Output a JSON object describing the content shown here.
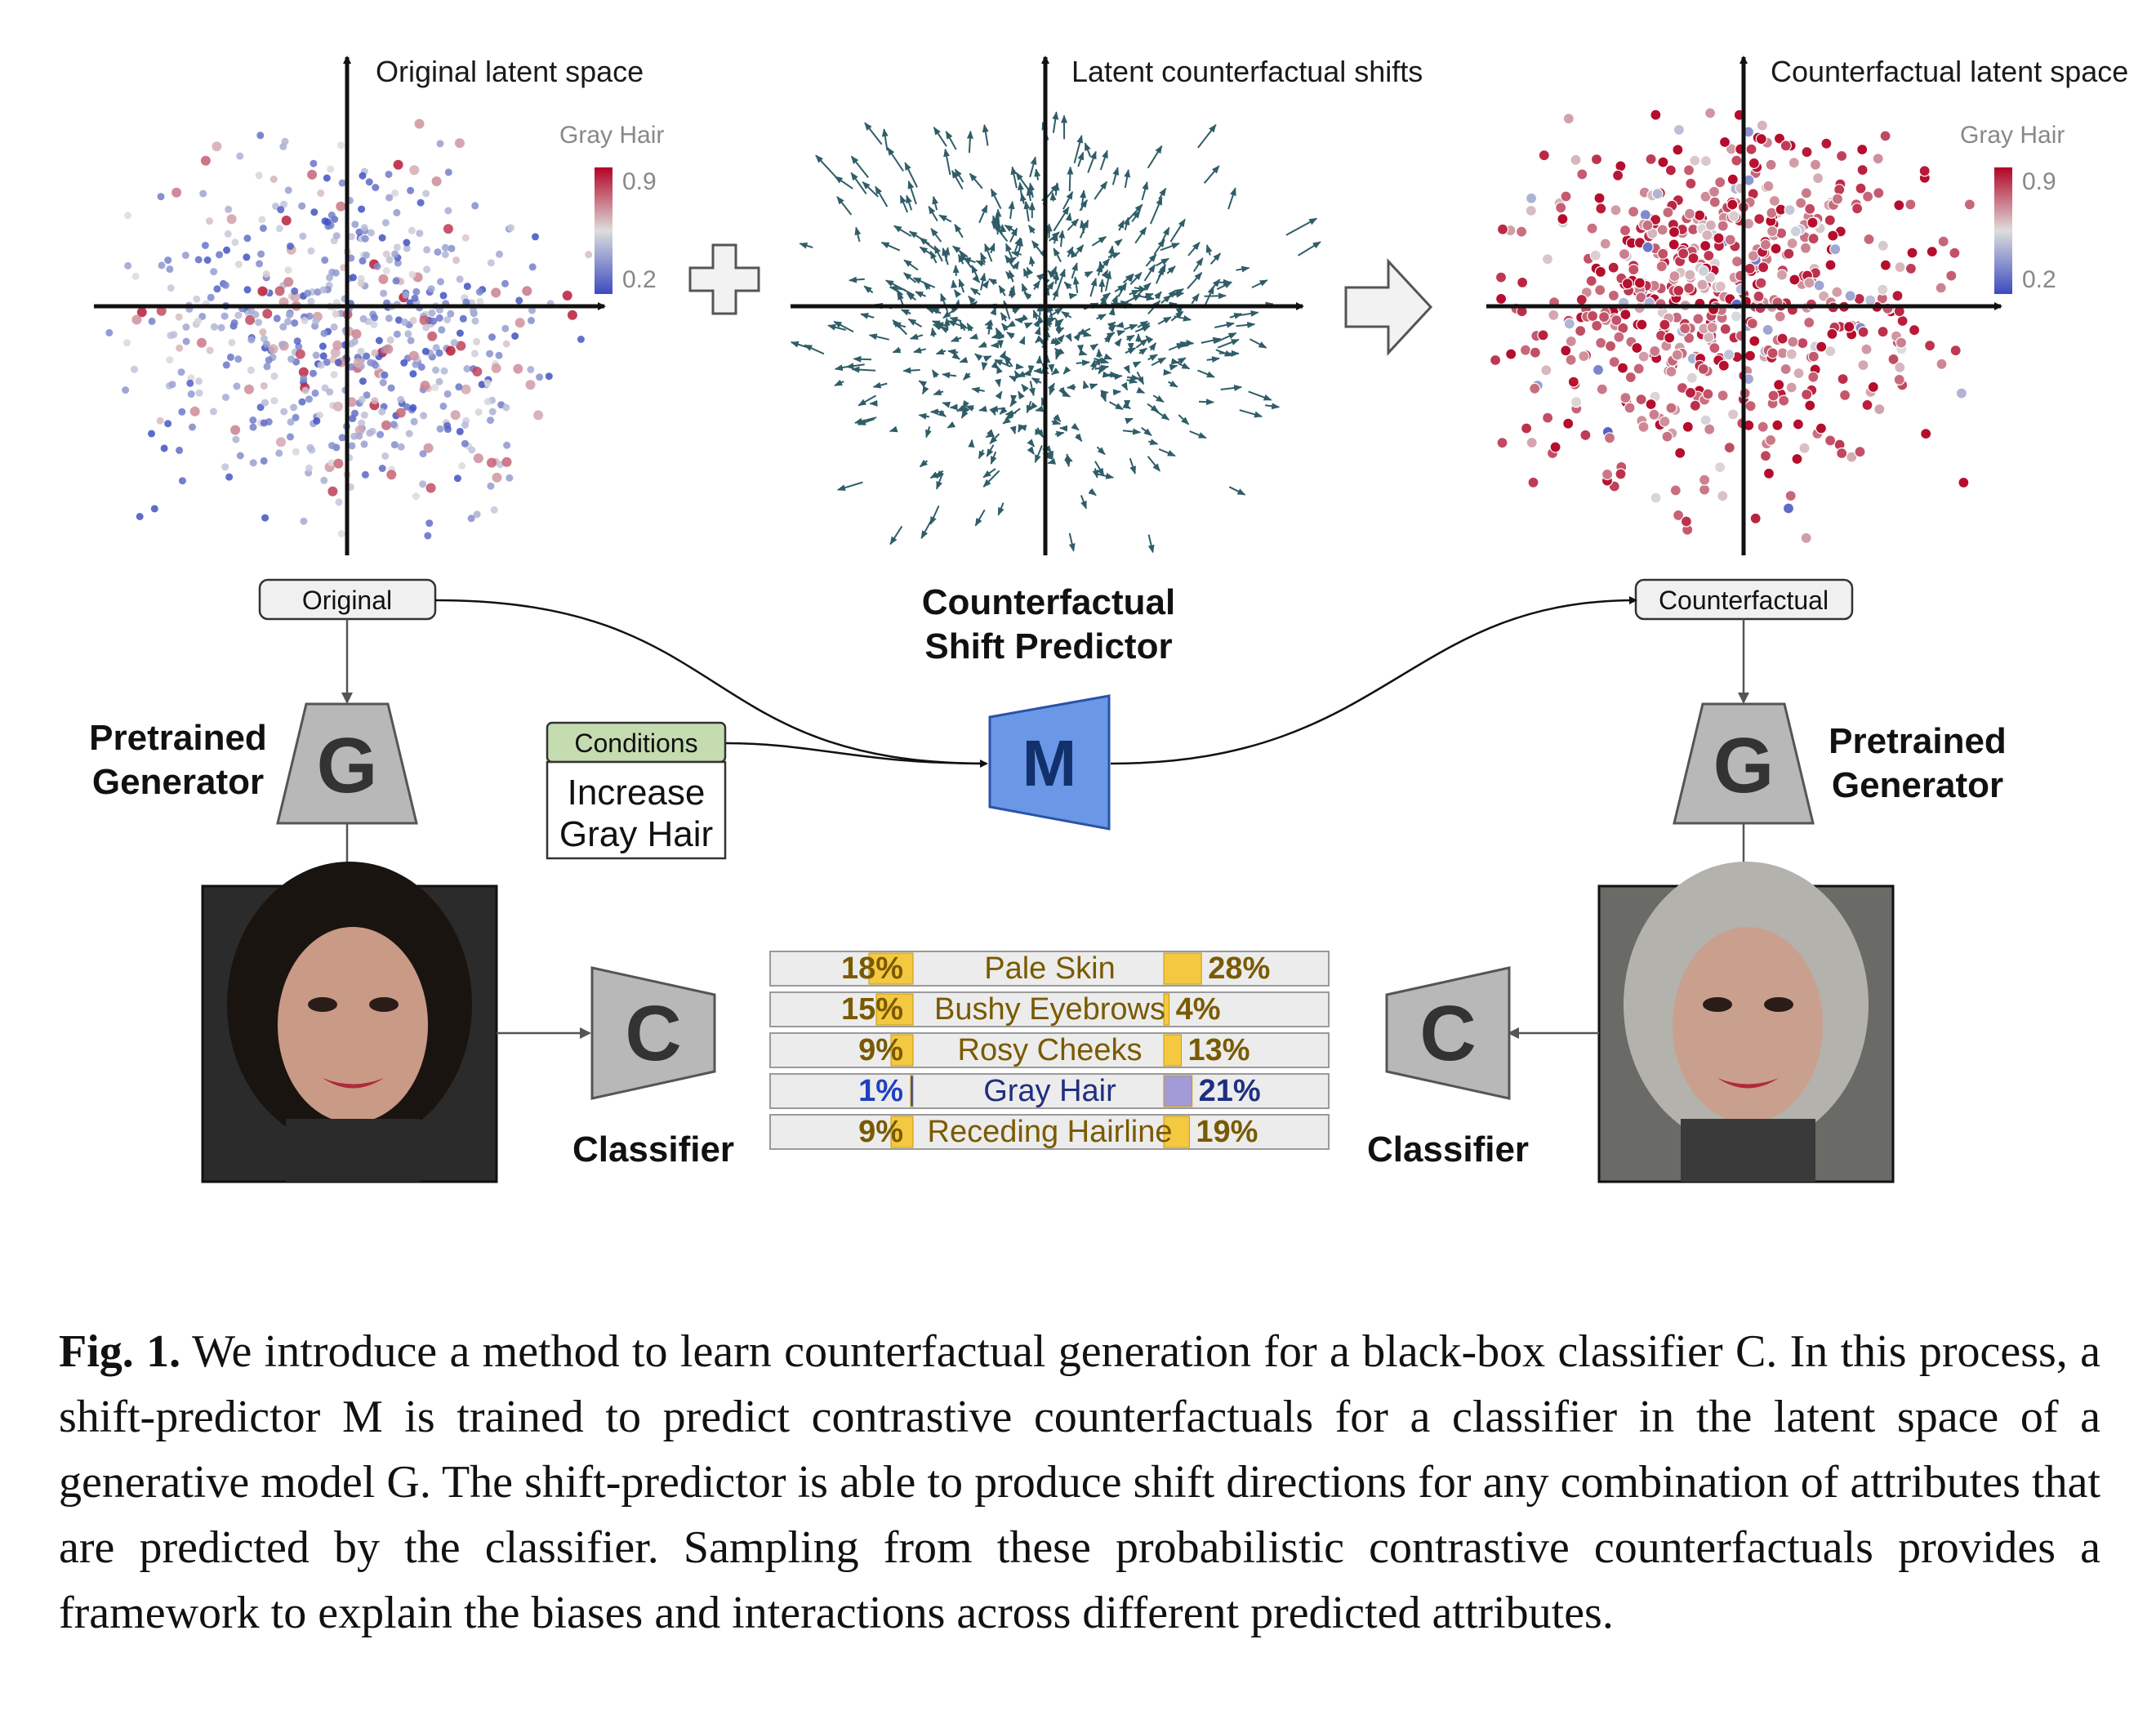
{
  "panels": {
    "original": {
      "title": "Original latent space",
      "colorbar_label": "Gray Hair",
      "cb_max": "0.9",
      "cb_min": "0.2"
    },
    "shifts": {
      "title": "Latent counterfactual shifts"
    },
    "counterfactual": {
      "title": "Counterfactual latent space",
      "colorbar_label": "Gray Hair",
      "cb_max": "0.9",
      "cb_min": "0.2"
    }
  },
  "pipeline": {
    "original_label": "Original",
    "counterfactual_label": "Counterfactual",
    "shift_predictor_line1": "Counterfactual",
    "shift_predictor_line2": "Shift Predictor",
    "pretrained_line1": "Pretrained",
    "pretrained_line2": "Generator",
    "generator_letter": "G",
    "shift_letter": "M",
    "classifier_letter": "C",
    "classifier_label": "Classifier",
    "conditions_label": "Conditions",
    "condition_line1": "Increase",
    "condition_line2": "Gray Hair"
  },
  "attributes": [
    {
      "name": "Pale Skin",
      "before": 18,
      "after": 28,
      "before_label": "18%",
      "after_label": "28%"
    },
    {
      "name": "Bushy Eyebrows",
      "before": 15,
      "after": 4,
      "before_label": "15%",
      "after_label": "4%"
    },
    {
      "name": "Rosy Cheeks",
      "before": 9,
      "after": 13,
      "before_label": "9%",
      "after_label": "13%"
    },
    {
      "name": "Gray Hair",
      "before": 1,
      "after": 21,
      "before_label": "1%",
      "after_label": "21%",
      "highlight": true
    },
    {
      "name": "Receding Hairline",
      "before": 9,
      "after": 19,
      "before_label": "9%",
      "after_label": "19%"
    }
  ],
  "colors": {
    "attr_text": "#7a5a00",
    "attr_bar": "#f5c842",
    "highlight_text": "#1f2f80",
    "highlight_before": "#2040c0",
    "highlight_bar": "#a39ad8",
    "conditions_fill": "#c4dcb0",
    "m_fill": "#6a98e6",
    "gc_fill": "#b8b8b8",
    "arrow_color": "#2f5d68"
  },
  "caption": {
    "fig_label": "Fig. 1.",
    "text": "We introduce a method to learn counterfactual generation for a black-box classifier C. In this process, a shift-predictor M is trained to predict contrastive counterfactuals for a classifier in the latent space of a generative model G. The shift-predictor is able to produce shift directions for any combination of attributes that are predicted by the classifier. Sampling from these probabilistic contrastive counterfactuals provides a framework to explain the biases and interactions across different predicted attributes."
  }
}
